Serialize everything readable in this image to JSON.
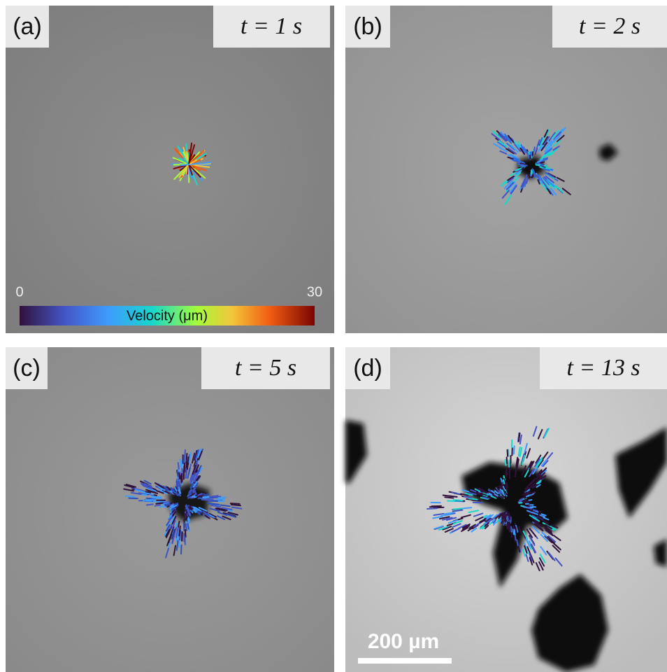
{
  "panels": [
    {
      "label": "(a)",
      "time": "t = 1 s"
    },
    {
      "label": "(b)",
      "time": "t = 2 s"
    },
    {
      "label": "(c)",
      "time": "t = 5 s"
    },
    {
      "label": "(d)",
      "time": "t = 13 s"
    }
  ],
  "colorbar": {
    "min": "0",
    "max": "30",
    "label": "Velocity (μm)"
  },
  "scale_bar": "200 µm"
}
